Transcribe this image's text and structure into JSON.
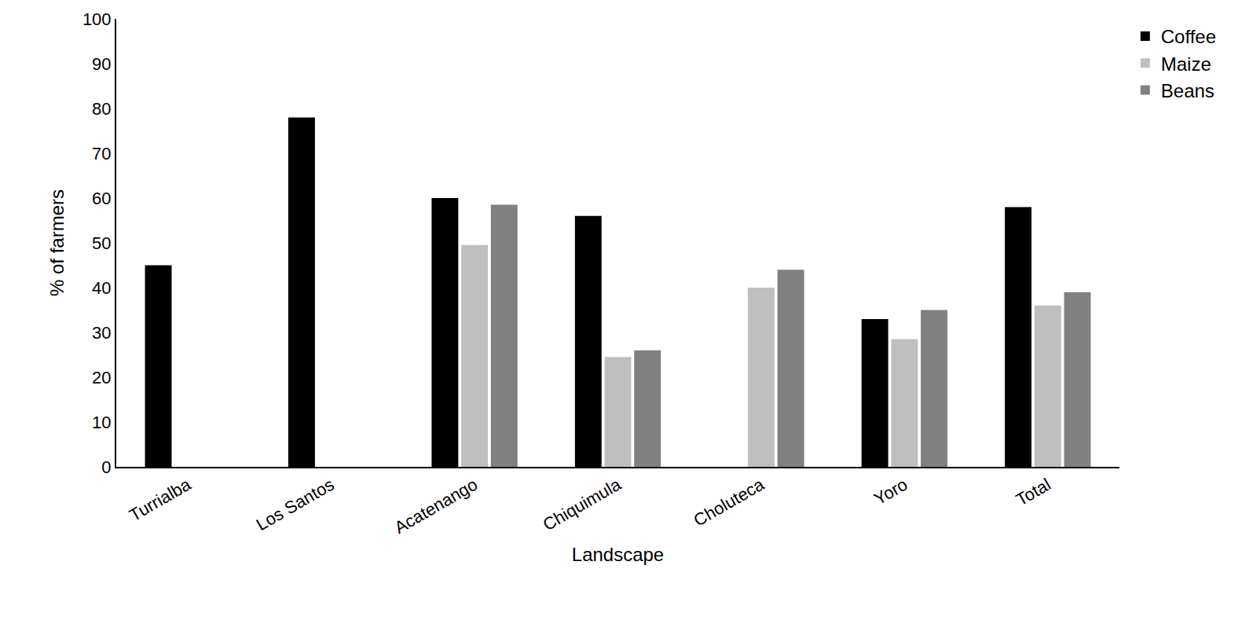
{
  "chart_data": {
    "type": "bar",
    "x_label": "Landscape",
    "y_label": "% of farmers",
    "categories": [
      "Turrialba",
      "Los Santos",
      "Acatenango",
      "Chiquimula",
      "Choluteca",
      "Yoro",
      "Total"
    ],
    "series": [
      {
        "name": "Coffee",
        "color": "#000000",
        "values": [
          45,
          78,
          60,
          56,
          null,
          33,
          58
        ]
      },
      {
        "name": "Maize",
        "color": "#bfbfbf",
        "values": [
          null,
          null,
          49.5,
          24.5,
          40,
          28.5,
          36
        ]
      },
      {
        "name": "Beans",
        "color": "#808080",
        "values": [
          null,
          null,
          58.5,
          26,
          44,
          35,
          39
        ]
      }
    ],
    "ylim": [
      0,
      100
    ],
    "yticks": [
      0,
      10,
      20,
      30,
      40,
      50,
      60,
      70,
      80,
      90,
      100
    ],
    "grid": false,
    "legend": "right"
  }
}
